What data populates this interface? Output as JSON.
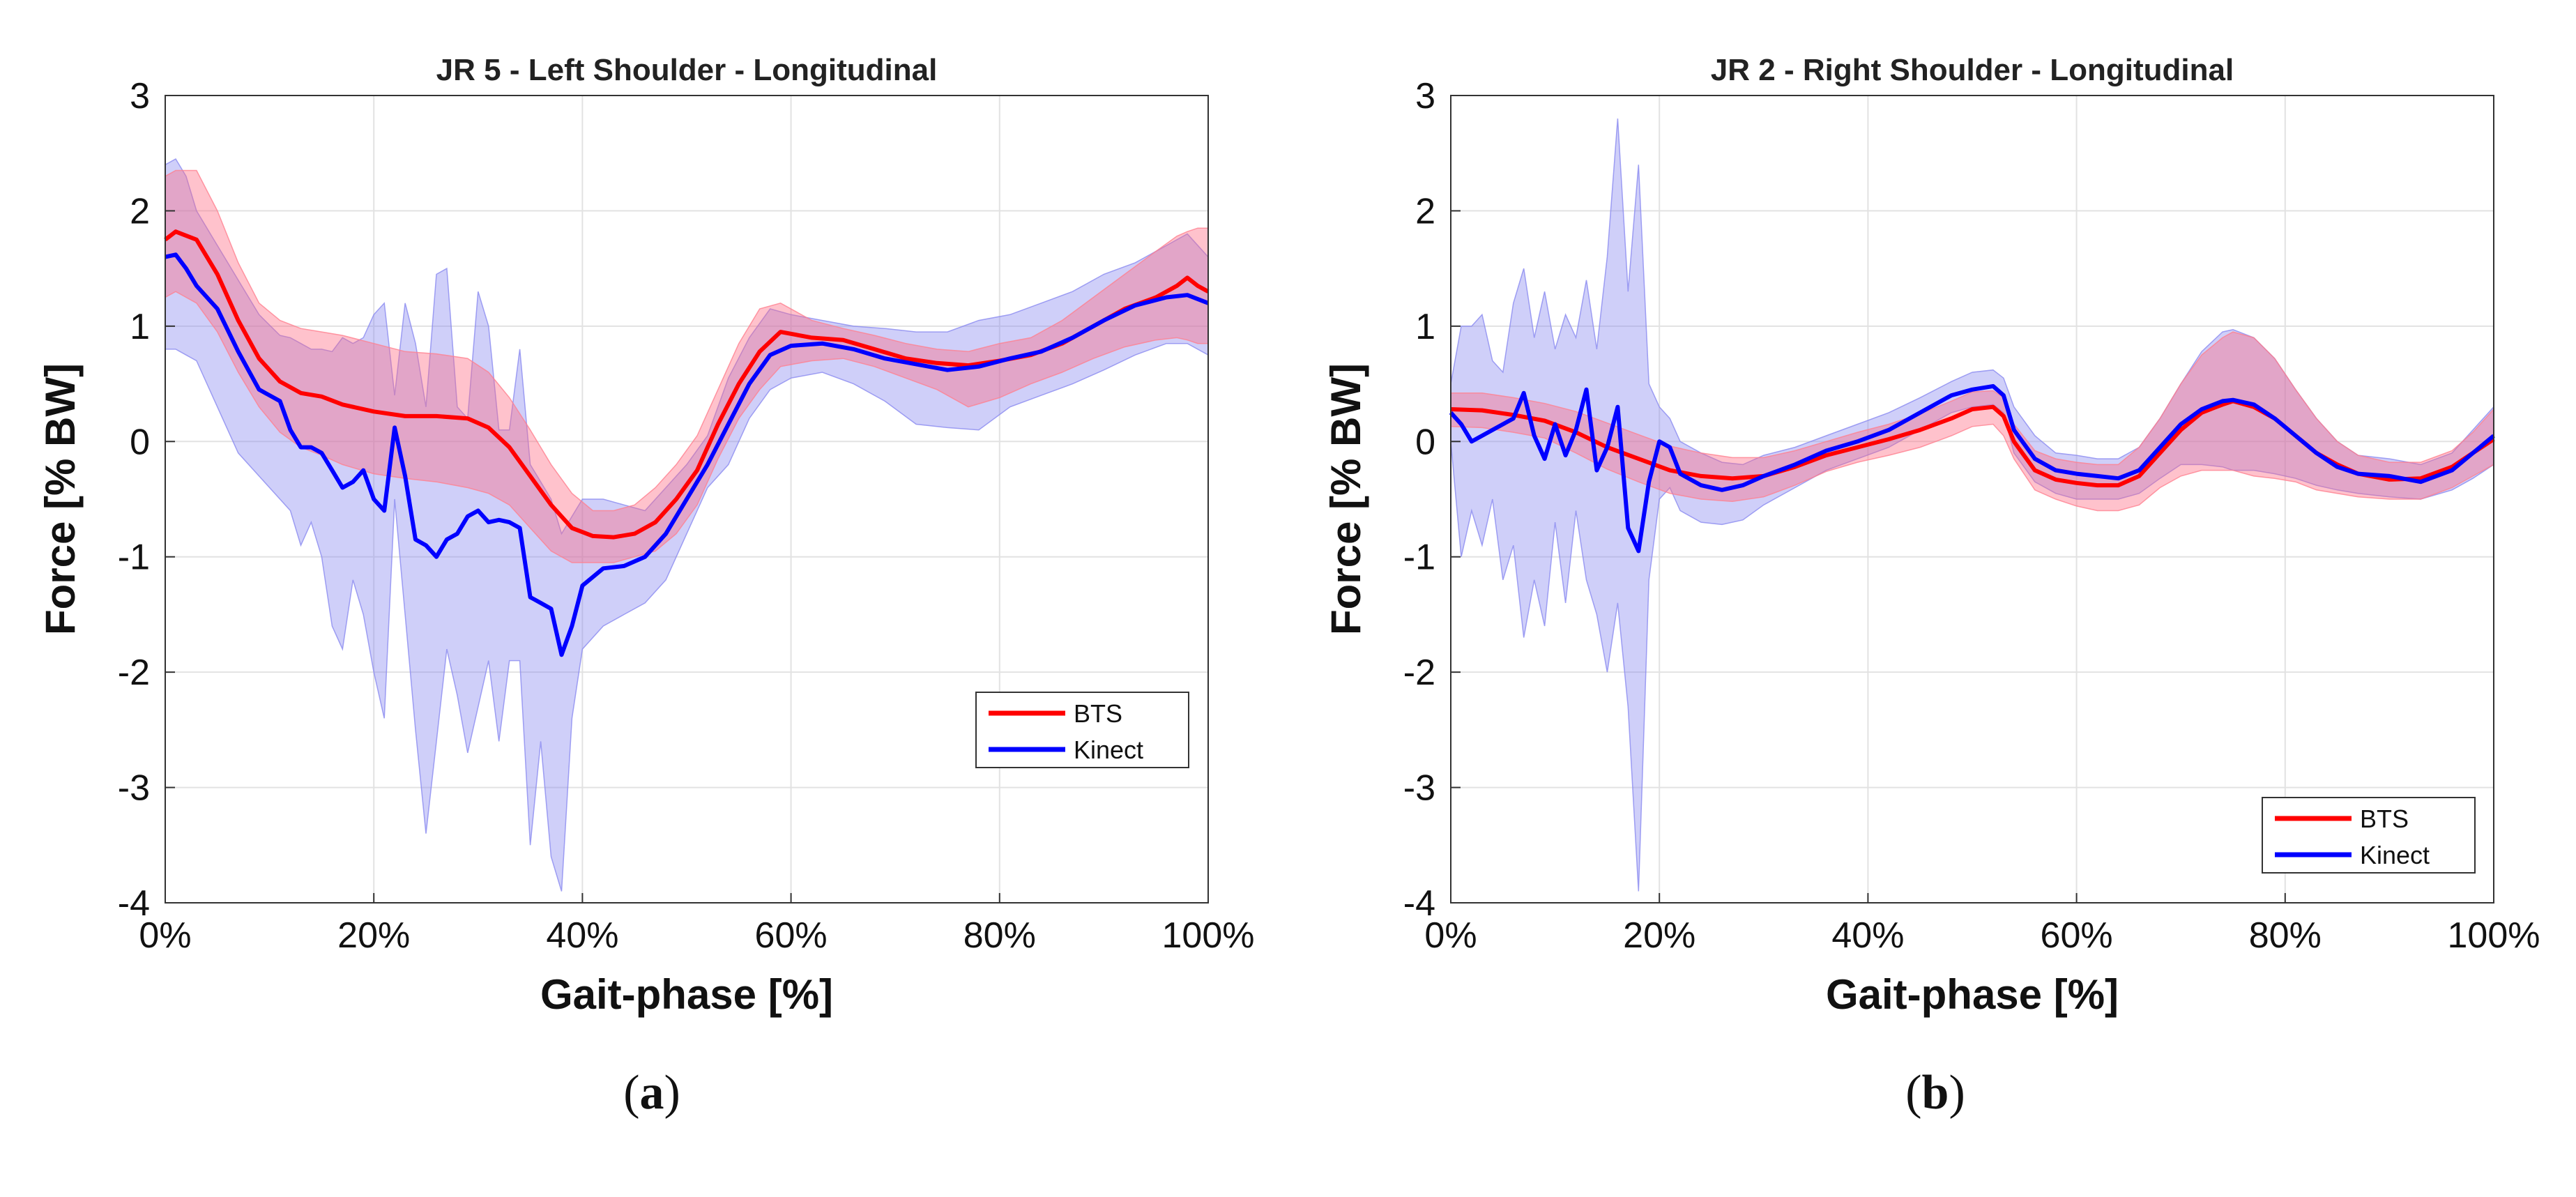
{
  "chart_data": [
    {
      "type": "line",
      "panel_label": "(a)",
      "title": "JR 5 - Left Shoulder - Longitudinal",
      "xlabel": "Gait-phase [%]",
      "ylabel": "Force [% BW]",
      "xlim": [
        0,
        100
      ],
      "ylim": [
        -4,
        3
      ],
      "xticks": [
        0,
        20,
        40,
        60,
        80,
        100
      ],
      "xtick_labels": [
        "0%",
        "20%",
        "40%",
        "60%",
        "80%",
        "100%"
      ],
      "yticks": [
        3,
        2,
        1,
        0,
        -1,
        -2,
        -3,
        -4
      ],
      "ytick_labels": [
        "3",
        "2",
        "1",
        "0",
        "-1",
        "-2",
        "-3",
        "-4"
      ],
      "grid": true,
      "legend_position": "bottom-right",
      "colors": {
        "BTS": "#ff0000",
        "Kinect": "#0000ff",
        "BTS_band": "#ff6680",
        "Kinect_band": "#8080ee"
      },
      "series": [
        {
          "name": "BTS",
          "x": [
            0,
            1,
            3,
            5,
            7,
            9,
            11,
            13,
            15,
            17,
            20,
            23,
            26,
            29,
            31,
            33,
            35,
            37,
            39,
            41,
            43,
            45,
            47,
            49,
            51,
            53,
            55,
            57,
            59,
            62,
            65,
            68,
            71,
            74,
            77,
            80,
            83,
            86,
            89,
            92,
            95,
            97,
            98,
            99,
            100
          ],
          "y": [
            1.75,
            1.82,
            1.75,
            1.45,
            1.05,
            0.72,
            0.52,
            0.42,
            0.39,
            0.32,
            0.26,
            0.22,
            0.22,
            0.2,
            0.12,
            -0.05,
            -0.3,
            -0.55,
            -0.75,
            -0.82,
            -0.83,
            -0.8,
            -0.7,
            -0.5,
            -0.25,
            0.15,
            0.5,
            0.78,
            0.95,
            0.9,
            0.88,
            0.8,
            0.72,
            0.68,
            0.66,
            0.7,
            0.75,
            0.85,
            1.0,
            1.15,
            1.25,
            1.35,
            1.42,
            1.35,
            1.3
          ],
          "upper": [
            2.3,
            2.35,
            2.35,
            2.0,
            1.55,
            1.2,
            1.05,
            0.98,
            0.95,
            0.92,
            0.85,
            0.78,
            0.76,
            0.72,
            0.6,
            0.38,
            0.1,
            -0.2,
            -0.45,
            -0.6,
            -0.6,
            -0.55,
            -0.4,
            -0.2,
            0.05,
            0.45,
            0.85,
            1.15,
            1.2,
            1.05,
            0.98,
            0.92,
            0.85,
            0.8,
            0.78,
            0.85,
            0.9,
            1.05,
            1.25,
            1.45,
            1.65,
            1.78,
            1.82,
            1.85,
            1.85
          ],
          "lower": [
            1.25,
            1.3,
            1.2,
            0.95,
            0.6,
            0.3,
            0.08,
            -0.05,
            -0.12,
            -0.2,
            -0.28,
            -0.32,
            -0.35,
            -0.4,
            -0.45,
            -0.55,
            -0.75,
            -0.95,
            -1.05,
            -1.05,
            -1.05,
            -1.0,
            -0.95,
            -0.8,
            -0.55,
            -0.15,
            0.2,
            0.45,
            0.65,
            0.7,
            0.72,
            0.65,
            0.55,
            0.45,
            0.3,
            0.38,
            0.5,
            0.6,
            0.72,
            0.82,
            0.88,
            0.9,
            0.88,
            0.85,
            0.85
          ]
        },
        {
          "name": "Kinect",
          "x": [
            0,
            1,
            2,
            3,
            5,
            7,
            9,
            11,
            12,
            13,
            14,
            15,
            16,
            17,
            18,
            19,
            20,
            21,
            22,
            23,
            24,
            25,
            26,
            27,
            28,
            29,
            30,
            31,
            32,
            33,
            34,
            35,
            36,
            37,
            38,
            39,
            40,
            42,
            44,
            46,
            48,
            50,
            52,
            54,
            56,
            58,
            60,
            63,
            66,
            69,
            72,
            75,
            78,
            81,
            84,
            87,
            90,
            93,
            96,
            98,
            100
          ],
          "y": [
            1.6,
            1.62,
            1.5,
            1.35,
            1.15,
            0.78,
            0.45,
            0.35,
            0.1,
            -0.05,
            -0.05,
            -0.1,
            -0.25,
            -0.4,
            -0.35,
            -0.25,
            -0.5,
            -0.6,
            0.12,
            -0.3,
            -0.85,
            -0.9,
            -1.0,
            -0.85,
            -0.8,
            -0.65,
            -0.6,
            -0.7,
            -0.68,
            -0.7,
            -0.75,
            -1.35,
            -1.4,
            -1.45,
            -1.85,
            -1.6,
            -1.25,
            -1.1,
            -1.08,
            -1.0,
            -0.8,
            -0.5,
            -0.2,
            0.15,
            0.5,
            0.75,
            0.83,
            0.85,
            0.8,
            0.72,
            0.67,
            0.62,
            0.65,
            0.72,
            0.78,
            0.9,
            1.05,
            1.18,
            1.25,
            1.27,
            1.2
          ],
          "upper": [
            2.4,
            2.45,
            2.3,
            2.0,
            1.7,
            1.4,
            1.1,
            0.92,
            0.9,
            0.85,
            0.8,
            0.8,
            0.78,
            0.9,
            0.85,
            0.9,
            1.1,
            1.2,
            0.4,
            1.2,
            0.85,
            0.3,
            1.45,
            1.5,
            0.3,
            0.2,
            1.3,
            1.0,
            0.1,
            0.1,
            0.8,
            -0.2,
            -0.35,
            -0.5,
            -0.8,
            -0.65,
            -0.5,
            -0.5,
            -0.55,
            -0.6,
            -0.4,
            -0.2,
            0.05,
            0.55,
            0.9,
            1.15,
            1.1,
            1.05,
            1.0,
            0.98,
            0.95,
            0.95,
            1.05,
            1.1,
            1.2,
            1.3,
            1.45,
            1.55,
            1.7,
            1.8,
            1.6
          ],
          "lower": [
            0.8,
            0.8,
            0.75,
            0.7,
            0.3,
            -0.1,
            -0.3,
            -0.5,
            -0.6,
            -0.9,
            -0.7,
            -1.0,
            -1.6,
            -1.8,
            -1.2,
            -1.5,
            -2.0,
            -2.4,
            -0.5,
            -1.5,
            -2.5,
            -3.4,
            -2.6,
            -1.8,
            -2.2,
            -2.7,
            -2.3,
            -1.9,
            -2.6,
            -1.9,
            -1.9,
            -3.5,
            -2.6,
            -3.6,
            -3.9,
            -2.4,
            -1.8,
            -1.6,
            -1.5,
            -1.4,
            -1.2,
            -0.8,
            -0.4,
            -0.2,
            0.2,
            0.45,
            0.55,
            0.6,
            0.5,
            0.35,
            0.15,
            0.12,
            0.1,
            0.3,
            0.4,
            0.5,
            0.62,
            0.75,
            0.85,
            0.85,
            0.75
          ]
        }
      ]
    },
    {
      "type": "line",
      "panel_label": "(b)",
      "title": "JR 2 - Right Shoulder - Longitudinal",
      "xlabel": "Gait-phase [%]",
      "ylabel": "Force [% BW]",
      "xlim": [
        0,
        100
      ],
      "ylim": [
        -4,
        3
      ],
      "xticks": [
        0,
        20,
        40,
        60,
        80,
        100
      ],
      "xtick_labels": [
        "0%",
        "20%",
        "40%",
        "60%",
        "80%",
        "100%"
      ],
      "yticks": [
        3,
        2,
        1,
        0,
        -1,
        -2,
        -3,
        -4
      ],
      "ytick_labels": [
        "3",
        "2",
        "1",
        "0",
        "-1",
        "-2",
        "-3",
        "-4"
      ],
      "grid": true,
      "legend_position": "bottom-right",
      "colors": {
        "BTS": "#ff0000",
        "Kinect": "#0000ff",
        "BTS_band": "#ff6680",
        "Kinect_band": "#8080ee"
      },
      "series": [
        {
          "name": "BTS",
          "x": [
            0,
            3,
            6,
            9,
            12,
            15,
            18,
            21,
            24,
            27,
            30,
            33,
            36,
            39,
            42,
            45,
            48,
            50,
            52,
            53,
            54,
            56,
            58,
            60,
            62,
            64,
            66,
            68,
            70,
            72,
            74,
            75,
            77,
            79,
            81,
            83,
            85,
            87,
            90,
            93,
            96,
            98,
            100
          ],
          "y": [
            0.28,
            0.27,
            0.23,
            0.18,
            0.08,
            -0.05,
            -0.15,
            -0.25,
            -0.3,
            -0.32,
            -0.3,
            -0.22,
            -0.12,
            -0.05,
            0.02,
            0.1,
            0.2,
            0.28,
            0.3,
            0.22,
            0.0,
            -0.25,
            -0.33,
            -0.36,
            -0.38,
            -0.38,
            -0.3,
            -0.1,
            0.1,
            0.25,
            0.32,
            0.35,
            0.3,
            0.2,
            0.05,
            -0.1,
            -0.2,
            -0.28,
            -0.33,
            -0.32,
            -0.22,
            -0.1,
            0.02
          ],
          "upper": [
            0.42,
            0.42,
            0.38,
            0.33,
            0.26,
            0.16,
            0.06,
            -0.04,
            -0.1,
            -0.14,
            -0.14,
            -0.08,
            0.0,
            0.08,
            0.15,
            0.24,
            0.35,
            0.43,
            0.44,
            0.38,
            0.15,
            -0.08,
            -0.15,
            -0.18,
            -0.2,
            -0.2,
            -0.05,
            0.2,
            0.5,
            0.75,
            0.9,
            0.95,
            0.9,
            0.72,
            0.45,
            0.2,
            0.0,
            -0.12,
            -0.18,
            -0.18,
            -0.08,
            0.08,
            0.28
          ],
          "lower": [
            0.13,
            0.12,
            0.08,
            0.03,
            -0.1,
            -0.24,
            -0.35,
            -0.45,
            -0.5,
            -0.52,
            -0.48,
            -0.38,
            -0.26,
            -0.18,
            -0.12,
            -0.05,
            0.05,
            0.13,
            0.15,
            0.05,
            -0.15,
            -0.42,
            -0.5,
            -0.56,
            -0.6,
            -0.6,
            -0.55,
            -0.4,
            -0.3,
            -0.25,
            -0.25,
            -0.25,
            -0.3,
            -0.32,
            -0.35,
            -0.42,
            -0.45,
            -0.48,
            -0.5,
            -0.5,
            -0.4,
            -0.3,
            -0.2
          ]
        },
        {
          "name": "Kinect",
          "x": [
            0,
            1,
            2,
            3,
            4,
            5,
            6,
            7,
            8,
            9,
            10,
            11,
            12,
            13,
            14,
            15,
            16,
            17,
            18,
            19,
            20,
            21,
            22,
            24,
            26,
            28,
            30,
            33,
            36,
            39,
            42,
            45,
            48,
            50,
            52,
            53,
            54,
            56,
            58,
            60,
            62,
            64,
            66,
            68,
            70,
            72,
            74,
            75,
            77,
            79,
            81,
            83,
            85,
            87,
            90,
            93,
            96,
            98,
            100
          ],
          "y": [
            0.25,
            0.15,
            0.0,
            0.05,
            0.1,
            0.15,
            0.2,
            0.42,
            0.05,
            -0.15,
            0.15,
            -0.12,
            0.1,
            0.45,
            -0.25,
            -0.05,
            0.3,
            -0.75,
            -0.95,
            -0.35,
            0.0,
            -0.05,
            -0.28,
            -0.38,
            -0.42,
            -0.38,
            -0.3,
            -0.2,
            -0.08,
            0.0,
            0.1,
            0.25,
            0.4,
            0.45,
            0.48,
            0.4,
            0.1,
            -0.15,
            -0.25,
            -0.28,
            -0.3,
            -0.32,
            -0.25,
            -0.05,
            0.15,
            0.28,
            0.35,
            0.36,
            0.32,
            0.2,
            0.05,
            -0.1,
            -0.22,
            -0.28,
            -0.3,
            -0.35,
            -0.25,
            -0.1,
            0.05
          ],
          "upper": [
            0.5,
            1.0,
            1.0,
            1.1,
            0.7,
            0.6,
            1.2,
            1.5,
            0.9,
            1.3,
            0.8,
            1.1,
            0.9,
            1.4,
            0.8,
            1.6,
            2.8,
            1.3,
            2.4,
            0.5,
            0.3,
            0.2,
            0.0,
            -0.1,
            -0.18,
            -0.2,
            -0.12,
            -0.05,
            0.05,
            0.15,
            0.25,
            0.38,
            0.52,
            0.6,
            0.62,
            0.55,
            0.3,
            0.05,
            -0.1,
            -0.12,
            -0.15,
            -0.15,
            -0.05,
            0.2,
            0.5,
            0.78,
            0.95,
            0.97,
            0.9,
            0.72,
            0.45,
            0.2,
            0.0,
            -0.12,
            -0.15,
            -0.2,
            -0.1,
            0.1,
            0.3
          ],
          "lower": [
            0.0,
            -1.0,
            -0.6,
            -0.9,
            -0.5,
            -1.2,
            -0.9,
            -1.7,
            -1.2,
            -1.6,
            -0.7,
            -1.4,
            -0.6,
            -1.2,
            -1.5,
            -2.0,
            -1.4,
            -2.3,
            -3.9,
            -1.2,
            -0.5,
            -0.4,
            -0.6,
            -0.7,
            -0.72,
            -0.68,
            -0.55,
            -0.4,
            -0.25,
            -0.15,
            -0.05,
            0.1,
            0.25,
            0.3,
            0.32,
            0.25,
            -0.1,
            -0.35,
            -0.45,
            -0.5,
            -0.5,
            -0.5,
            -0.45,
            -0.32,
            -0.2,
            -0.2,
            -0.22,
            -0.25,
            -0.25,
            -0.28,
            -0.32,
            -0.38,
            -0.42,
            -0.45,
            -0.48,
            -0.5,
            -0.42,
            -0.32,
            -0.2
          ]
        }
      ]
    }
  ]
}
